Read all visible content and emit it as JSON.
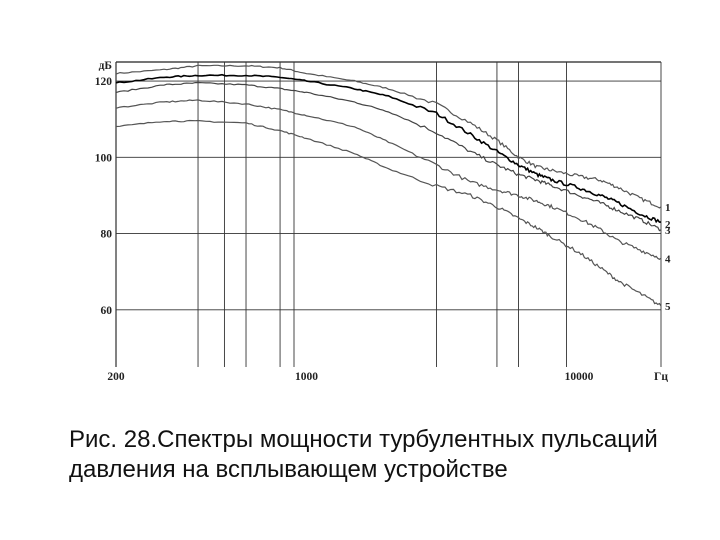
{
  "chart_data": {
    "type": "line",
    "x_scale": "log",
    "xlim": [
      200,
      20000
    ],
    "ylim": [
      45,
      125
    ],
    "x_unit": "Гц",
    "y_unit": "дБ",
    "grid": true,
    "x_tick_labels": [
      "200",
      "1000",
      "10000"
    ],
    "x_tick_values": [
      200,
      1000,
      10000
    ],
    "y_tick_labels": [
      "120",
      "100",
      "80",
      "60"
    ],
    "y_tick_values": [
      120,
      100,
      80,
      60
    ],
    "x_gridlines": [
      200,
      400,
      500,
      600,
      800,
      900,
      3000,
      5000,
      6000,
      9000,
      20000
    ],
    "y_gridlines": [
      60,
      80,
      100,
      120
    ],
    "series": [
      {
        "name": "1",
        "color": "#555555",
        "x": [
          200,
          300,
          400,
          600,
          800,
          1000,
          1500,
          2000,
          3000,
          4000,
          5000,
          6000,
          7000,
          8000,
          10000,
          12000,
          14000,
          17000,
          20000
        ],
        "y": [
          122,
          123,
          124,
          124,
          123.5,
          122,
          120,
          118,
          114,
          109,
          104.5,
          100,
          97.5,
          96.5,
          95,
          94,
          92,
          89,
          87
        ]
      },
      {
        "name": "2",
        "color": "#000000",
        "x": [
          200,
          300,
          400,
          600,
          800,
          1000,
          1500,
          2000,
          3000,
          4000,
          5000,
          6000,
          7000,
          8000,
          10000,
          12000,
          14000,
          17000,
          20000
        ],
        "y": [
          119.5,
          121,
          121.5,
          121.5,
          121,
          120,
          118,
          116,
          111.5,
          106,
          101.5,
          98,
          95.5,
          94,
          92,
          90,
          88,
          85,
          83
        ]
      },
      {
        "name": "3",
        "color": "#444444",
        "x": [
          200,
          300,
          400,
          600,
          800,
          1000,
          1500,
          2000,
          3000,
          4000,
          5000,
          6000,
          7000,
          8000,
          10000,
          12000,
          14000,
          17000,
          20000
        ],
        "y": [
          117,
          119,
          119.5,
          119,
          118,
          117,
          114.5,
          112,
          106.5,
          101.5,
          98,
          95.5,
          94,
          92.5,
          90,
          88,
          86,
          83.5,
          81
        ]
      },
      {
        "name": "4",
        "color": "#555555",
        "x": [
          200,
          300,
          400,
          600,
          800,
          1000,
          1500,
          2000,
          3000,
          4000,
          5000,
          6000,
          7000,
          8000,
          10000,
          12000,
          14000,
          17000,
          20000
        ],
        "y": [
          113,
          114.5,
          115,
          114,
          112.5,
          111,
          108,
          104,
          98,
          93.5,
          91.5,
          90,
          88.5,
          87,
          84,
          81,
          78,
          75.5,
          73.5
        ]
      },
      {
        "name": "5",
        "color": "#555555",
        "x": [
          200,
          300,
          400,
          600,
          800,
          1000,
          1500,
          2000,
          3000,
          4000,
          5000,
          6000,
          7000,
          8000,
          10000,
          12000,
          14000,
          17000,
          20000
        ],
        "y": [
          108,
          109.5,
          109.5,
          109,
          107,
          105,
          101,
          97,
          92.5,
          90,
          87,
          84,
          81.5,
          79,
          75,
          71,
          67.5,
          64,
          61
        ]
      }
    ]
  },
  "caption": "Рис. 28.Спектры мощности турбулентных пульсаций давления на всплывающем устройстве"
}
